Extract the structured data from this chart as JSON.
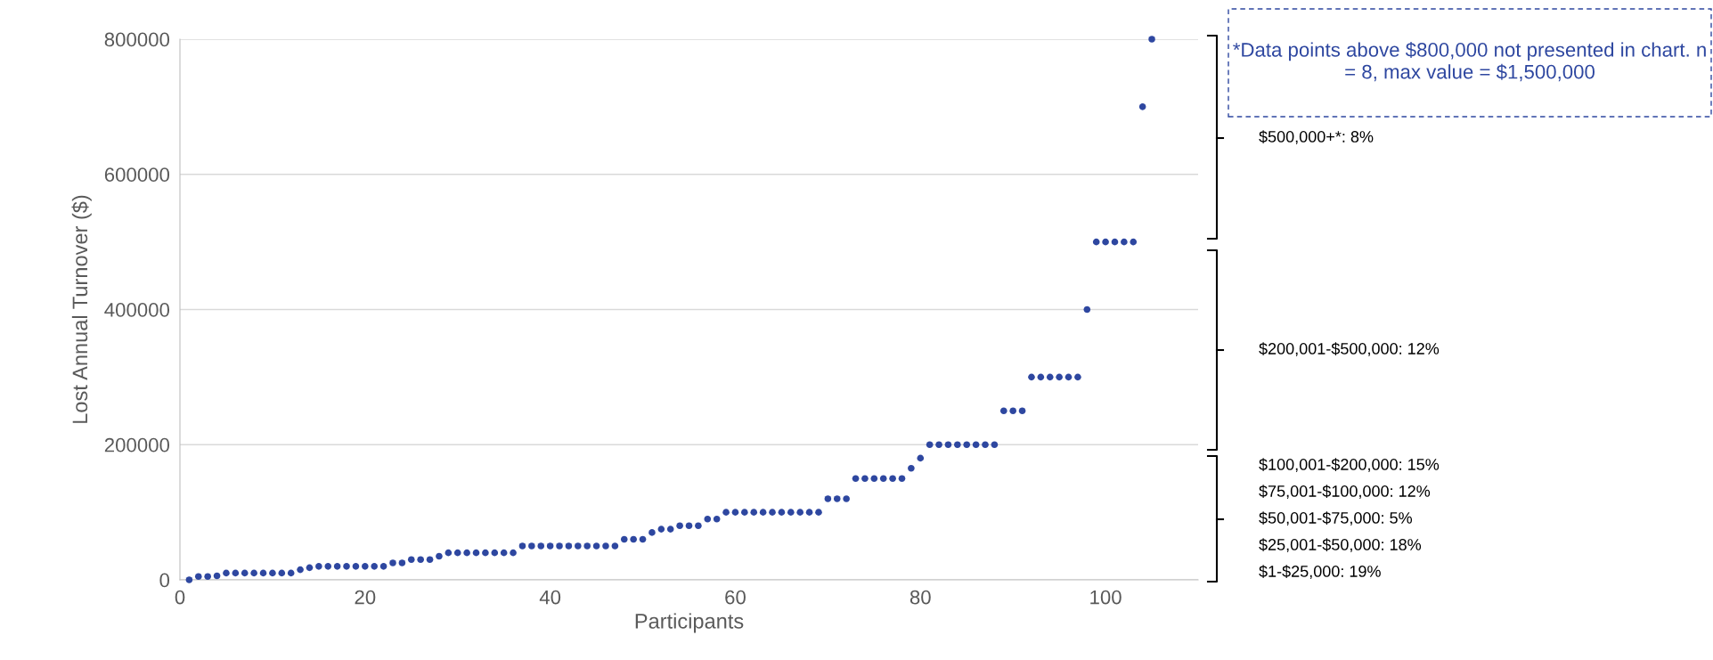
{
  "chart_data": {
    "type": "scatter",
    "xlabel": "Participants",
    "ylabel": "Lost Annual Turnover ($)",
    "x": [
      1,
      2,
      3,
      4,
      5,
      6,
      7,
      8,
      9,
      10,
      11,
      12,
      13,
      14,
      15,
      16,
      17,
      18,
      19,
      20,
      21,
      22,
      23,
      24,
      25,
      26,
      27,
      28,
      29,
      30,
      31,
      32,
      33,
      34,
      35,
      36,
      37,
      38,
      39,
      40,
      41,
      42,
      43,
      44,
      45,
      46,
      47,
      48,
      49,
      50,
      51,
      52,
      53,
      54,
      55,
      56,
      57,
      58,
      59,
      60,
      61,
      62,
      63,
      64,
      65,
      66,
      67,
      68,
      69,
      70,
      71,
      72,
      73,
      74,
      75,
      76,
      77,
      78,
      79,
      80,
      81,
      82,
      83,
      84,
      85,
      86,
      87,
      88,
      89,
      90,
      91,
      92,
      93,
      94,
      95,
      96,
      97,
      98,
      99,
      100,
      101,
      102,
      103,
      104,
      105
    ],
    "series": [
      {
        "color": "#2e47a0",
        "values": [
          0,
          5000,
          5000,
          6000,
          10000,
          10000,
          10000,
          10000,
          10000,
          10000,
          10000,
          10000,
          15000,
          18000,
          20000,
          20000,
          20000,
          20000,
          20000,
          20000,
          20000,
          20000,
          25000,
          25000,
          30000,
          30000,
          30000,
          35000,
          40000,
          40000,
          40000,
          40000,
          40000,
          40000,
          40000,
          40000,
          50000,
          50000,
          50000,
          50000,
          50000,
          50000,
          50000,
          50000,
          50000,
          50000,
          50000,
          60000,
          60000,
          60000,
          70000,
          75000,
          75000,
          80000,
          80000,
          80000,
          90000,
          90000,
          100000,
          100000,
          100000,
          100000,
          100000,
          100000,
          100000,
          100000,
          100000,
          100000,
          100000,
          120000,
          120000,
          120000,
          150000,
          150000,
          150000,
          150000,
          150000,
          150000,
          165000,
          180000,
          200000,
          200000,
          200000,
          200000,
          200000,
          200000,
          200000,
          200000,
          250000,
          250000,
          250000,
          300000,
          300000,
          300000,
          300000,
          300000,
          300000,
          400000,
          500000,
          500000,
          500000,
          500000,
          500000,
          700000,
          800000
        ]
      }
    ],
    "xlim": [
      0,
      110
    ],
    "xticks": [
      0,
      20,
      40,
      60,
      80,
      100
    ],
    "ylim": [
      0,
      800000
    ],
    "yticks": [
      0,
      200000,
      400000,
      600000,
      800000
    ],
    "grid": "y",
    "marker": "circle",
    "annotations": [
      "*Data points above $800,000 not presented in chart. n = 8, max value = $1,500,000",
      "$500,000+*: 8%",
      "$200,001-$500,000: 12%",
      "$100,001-$200,000: 15%",
      "$75,001-$100,000: 12%",
      "$50,001-$75,000: 5%",
      "$25,001-$50,000: 18%",
      "$1-$25,000: 19%"
    ]
  }
}
